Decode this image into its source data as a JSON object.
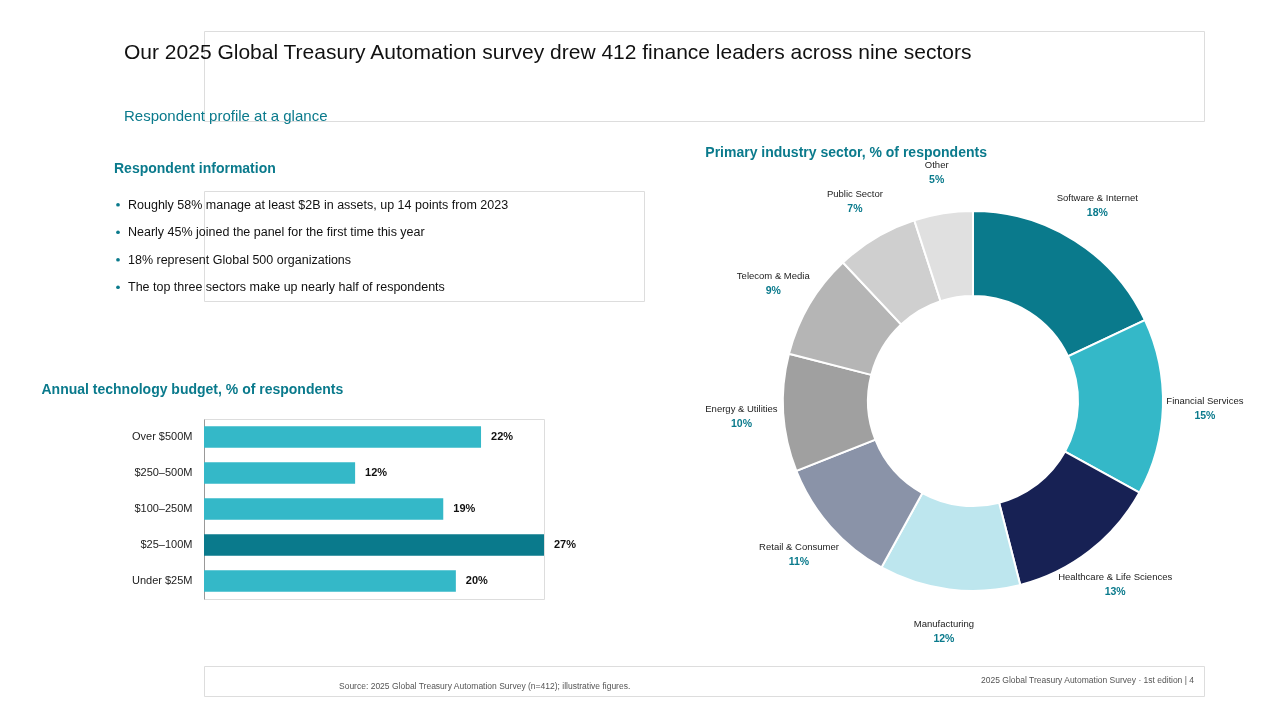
{
  "chart_data": [
    {
      "type": "other",
      "title": "Our 2025 Global Treasury Automation survey drew 412 finance leaders across nine sectors",
      "subtitle": "Respondent profile at a glance",
      "annotations": [
        "Source: 2025 Global Treasury Automation Survey (n=412); illustrative figures.",
        "2025 Global Treasury Automation Survey · 1st edition  |  4"
      ]
    },
    {
      "type": "other",
      "title": "Respondent information",
      "annotations": [
        "Roughly 58% manage at least $2B in assets, up 14 points from 2023",
        "Nearly 45% joined the panel for the first time this year",
        "18% represent Global 500 organizations",
        "The top three sectors make up nearly half of respondents"
      ]
    },
    {
      "type": "bar",
      "orientation": "horizontal",
      "title": "Annual technology budget, % of respondents",
      "categories": [
        "Over $500M",
        "$250–500M",
        "$100–250M",
        "$25–100M",
        "Under $25M"
      ],
      "values": [
        22,
        12,
        19,
        27,
        20
      ],
      "colors": [
        "#34b8c8",
        "#34b8c8",
        "#34b8c8",
        "#0a7a8c",
        "#34b8c8"
      ],
      "value_labels": [
        "22%",
        "12%",
        "19%",
        "27%",
        "20%"
      ],
      "tick_labels": "y",
      "legend": false,
      "grid": false
    },
    {
      "type": "donut",
      "title": "Primary industry sector, % of respondents",
      "categories": [
        "Software & Internet",
        "Financial Services",
        "Healthcare & Life Sciences",
        "Manufacturing",
        "Retail & Consumer",
        "Energy & Utilities",
        "Telecom & Media",
        "Public Sector",
        "Other"
      ],
      "values": [
        18,
        15,
        13,
        12,
        11,
        10,
        9,
        7,
        5
      ],
      "colors": [
        "#0a7a8c",
        "#34b8c8",
        "#172154",
        "#bde6ee",
        "#8a93a8",
        "#a0a0a0",
        "#b5b5b5",
        "#cfcfcf",
        "#e0e0e0"
      ],
      "value_labels": [
        "18%",
        "15%",
        "13%",
        "12%",
        "11%",
        "10%",
        "9%",
        "7%",
        "5%"
      ],
      "legend": false
    }
  ]
}
